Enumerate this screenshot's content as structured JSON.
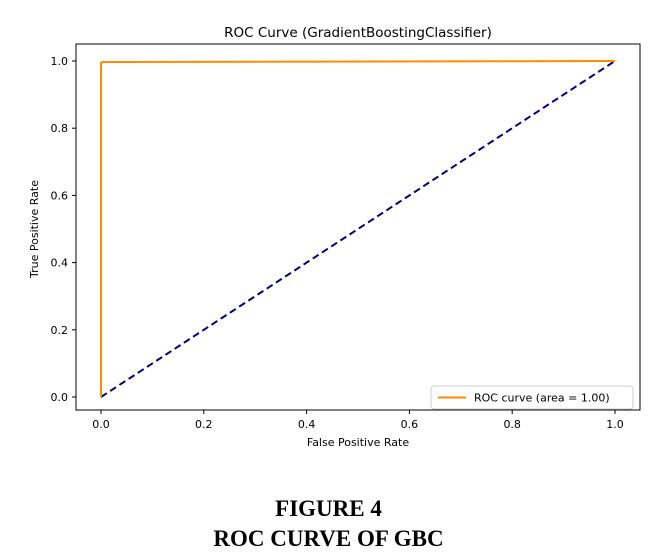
{
  "chart_data": {
    "type": "line",
    "title": "ROC Curve (GradientBoostingClassifier)",
    "xlabel": "False Positive Rate",
    "ylabel": "True Positive Rate",
    "xlim": [
      0.0,
      1.0
    ],
    "ylim": [
      0.0,
      1.0
    ],
    "xticks": [
      "0.0",
      "0.2",
      "0.4",
      "0.6",
      "0.8",
      "1.0"
    ],
    "yticks": [
      "0.0",
      "0.2",
      "0.4",
      "0.6",
      "0.8",
      "1.0"
    ],
    "grid": false,
    "legend_position": "lower right",
    "series": [
      {
        "name": "ROC curve (area = 1.00)",
        "color": "#ff8c00",
        "style": "solid",
        "x": [
          0.0,
          0.0,
          0.003,
          1.0
        ],
        "y": [
          0.0,
          0.995,
          0.997,
          1.0
        ]
      },
      {
        "color": "#000080",
        "style": "dashed",
        "x": [
          0.0,
          1.0
        ],
        "y": [
          0.0,
          1.0
        ]
      }
    ]
  },
  "caption": {
    "figure_number": "FIGURE 4",
    "figure_title": "ROC CURVE OF GBC"
  }
}
